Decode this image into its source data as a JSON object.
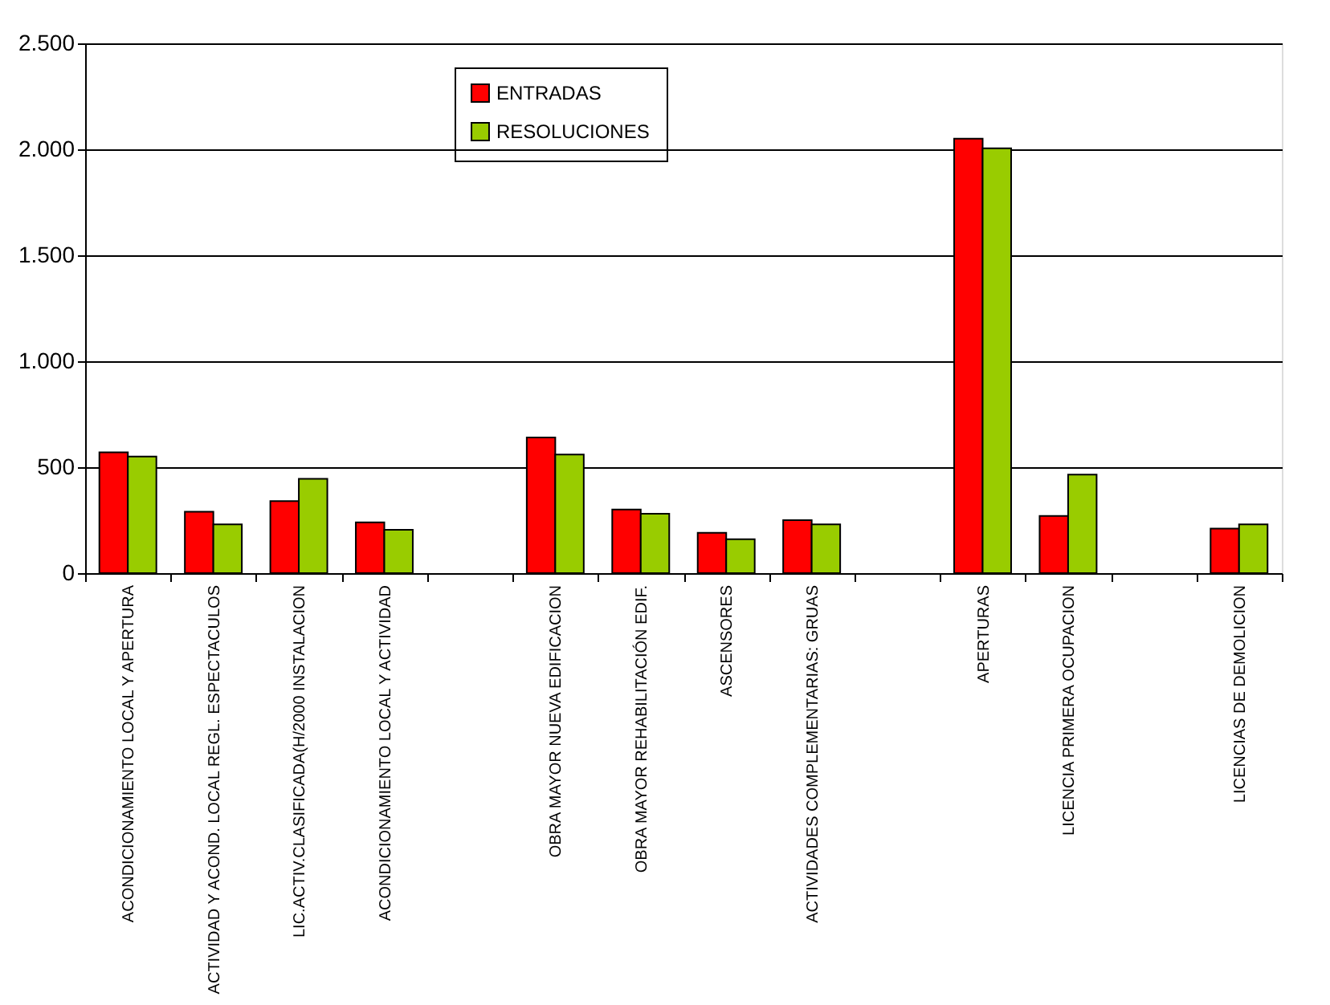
{
  "chart_data": {
    "type": "bar",
    "categories": [
      "ACONDICIONAMIENTO LOCAL Y APERTURA",
      "ACTIVIDAD Y ACOND. LOCAL REGL. ESPECTACULOS",
      "LIC.ACTIV.CLASIFICADA(H/2000 INSTALACION",
      "ACONDICIONAMIENTO LOCAL Y ACTIVIDAD",
      null,
      "OBRA MAYOR NUEVA EDIFICACION",
      "OBRA MAYOR REHABILITACIÓN EDIF.",
      "ASCENSORES",
      "ACTIVIDADES COMPLEMENTARIAS: GRUAS",
      null,
      "APERTURAS",
      "LICENCIA PRIMERA OCUPACION",
      null,
      "LICENCIAS DE DEMOLICION"
    ],
    "series": [
      {
        "name": "ENTRADAS",
        "color": "#ff0000",
        "values": [
          570,
          290,
          340,
          240,
          null,
          640,
          300,
          190,
          250,
          null,
          2050,
          270,
          null,
          210
        ]
      },
      {
        "name": "RESOLUCIONES",
        "color": "#99cc00",
        "values": [
          550,
          230,
          445,
          205,
          null,
          560,
          280,
          160,
          230,
          null,
          2005,
          465,
          null,
          230
        ]
      }
    ],
    "ylim": [
      0,
      2500
    ],
    "yticks": [
      {
        "value": 0,
        "label": "0"
      },
      {
        "value": 500,
        "label": "500"
      },
      {
        "value": 1000,
        "label": "1.000"
      },
      {
        "value": 1500,
        "label": "1.500"
      },
      {
        "value": 2000,
        "label": "2.000"
      },
      {
        "value": 2500,
        "label": "2.500"
      }
    ],
    "grid": "y",
    "legend": "top"
  }
}
